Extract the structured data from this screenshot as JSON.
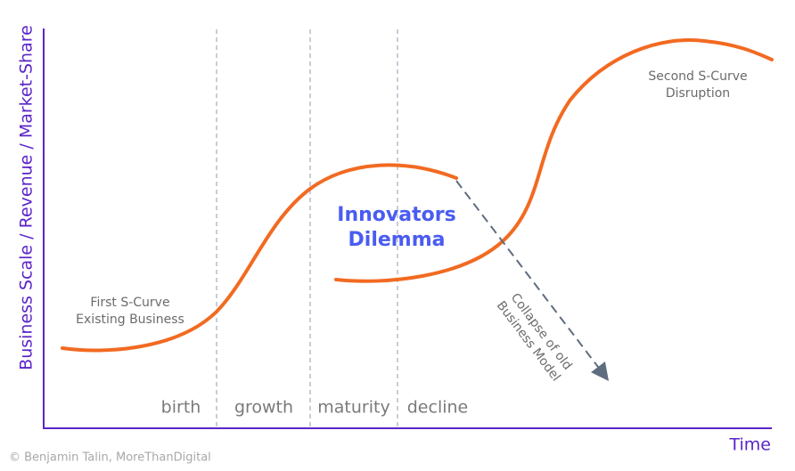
{
  "axes": {
    "y_label": "Business Scale / Revenue / Market-Share",
    "x_label": "Time"
  },
  "phases": [
    "birth",
    "growth",
    "maturity",
    "decline"
  ],
  "first_curve": {
    "lines": [
      "First S-Curve",
      "Existing Business"
    ]
  },
  "second_curve": {
    "lines": [
      "Second S-Curve",
      "Disruption"
    ]
  },
  "center_title": {
    "lines": [
      "Innovators",
      "Dilemma"
    ]
  },
  "collapse": {
    "lines": [
      "Collapse of old",
      "Business Model"
    ]
  },
  "copyright": "© Benjamin Talin, MoreThanDigital"
}
